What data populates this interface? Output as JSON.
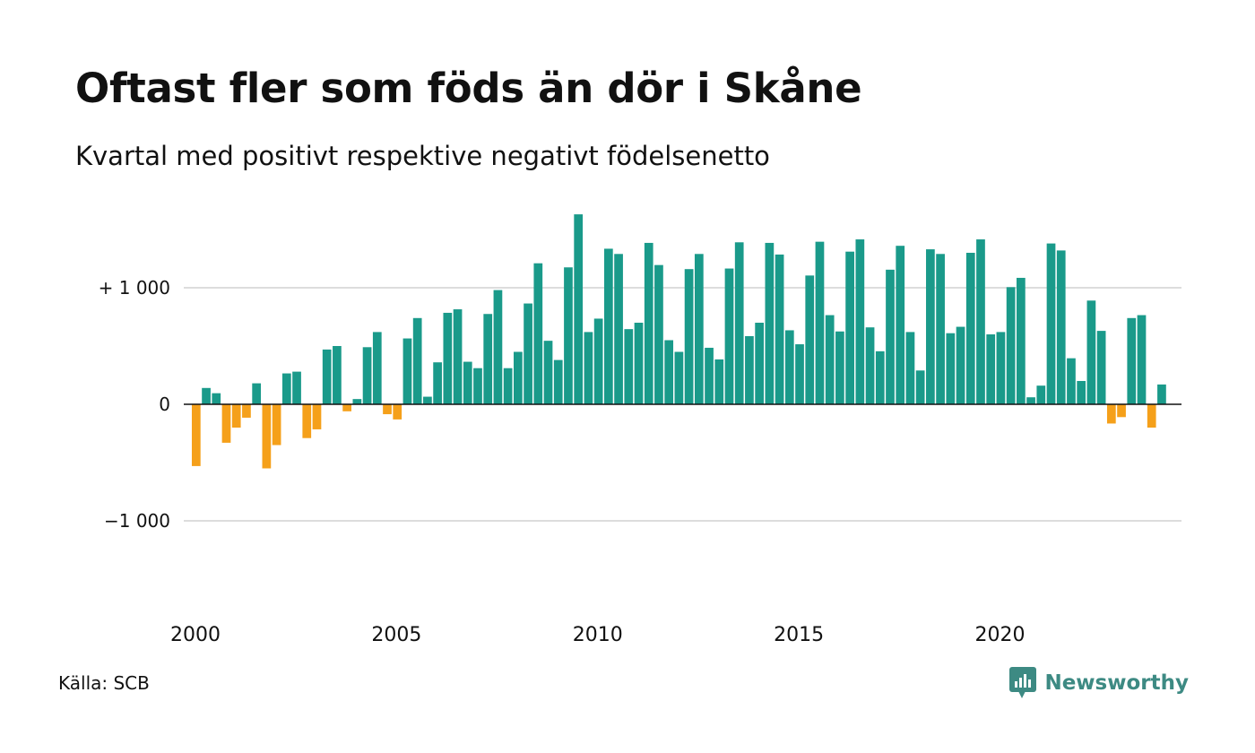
{
  "title": "Oftast fler som föds än dör i Skåne",
  "subtitle": "Kvartal med positivt respektive negativt födelsenetto",
  "source": "Källa: SCB",
  "brand": {
    "name": "Newsworthy",
    "icon": "newsworthy-logo-icon",
    "color": "#3d8a83"
  },
  "colors": {
    "positive": "#1a9a8a",
    "negative": "#f5a01a",
    "gridline": "#dddddd",
    "zero_line": "#111111"
  },
  "chart_data": {
    "type": "bar",
    "title": "Oftast fler som föds än dör i Skåne",
    "subtitle": "Kvartal med positivt respektive negativt födelsenetto",
    "xlabel": "",
    "ylabel": "",
    "grid": true,
    "xlim": [
      1999.8,
      2024.6
    ],
    "ylim": [
      -1650,
      1650
    ],
    "x_ticks": [
      2000,
      2005,
      2010,
      2015,
      2020
    ],
    "x_tick_labels": [
      "2000",
      "2005",
      "2010",
      "2015",
      "2020"
    ],
    "y_ticks": [
      1000,
      0,
      -1000
    ],
    "y_tick_labels": [
      "+ 1 000",
      "0",
      "−1 000"
    ],
    "quarters_start": [
      2000,
      1
    ],
    "values": [
      -530,
      140,
      95,
      -330,
      -200,
      -115,
      180,
      -550,
      -350,
      265,
      280,
      -290,
      -215,
      470,
      500,
      -60,
      45,
      490,
      620,
      -85,
      -130,
      565,
      740,
      65,
      360,
      785,
      815,
      365,
      310,
      775,
      980,
      310,
      450,
      865,
      1210,
      545,
      380,
      1175,
      1630,
      620,
      735,
      1335,
      1290,
      645,
      700,
      1385,
      1195,
      550,
      450,
      1160,
      1290,
      485,
      385,
      1165,
      1390,
      585,
      700,
      1385,
      1285,
      635,
      515,
      1105,
      1395,
      765,
      625,
      1310,
      1415,
      660,
      455,
      1155,
      1360,
      620,
      290,
      1330,
      1290,
      610,
      665,
      1300,
      1415,
      600,
      620,
      1005,
      1085,
      60,
      160,
      1380,
      1320,
      395,
      200,
      890,
      630,
      -165,
      -110,
      740,
      765,
      -200,
      170
    ]
  }
}
